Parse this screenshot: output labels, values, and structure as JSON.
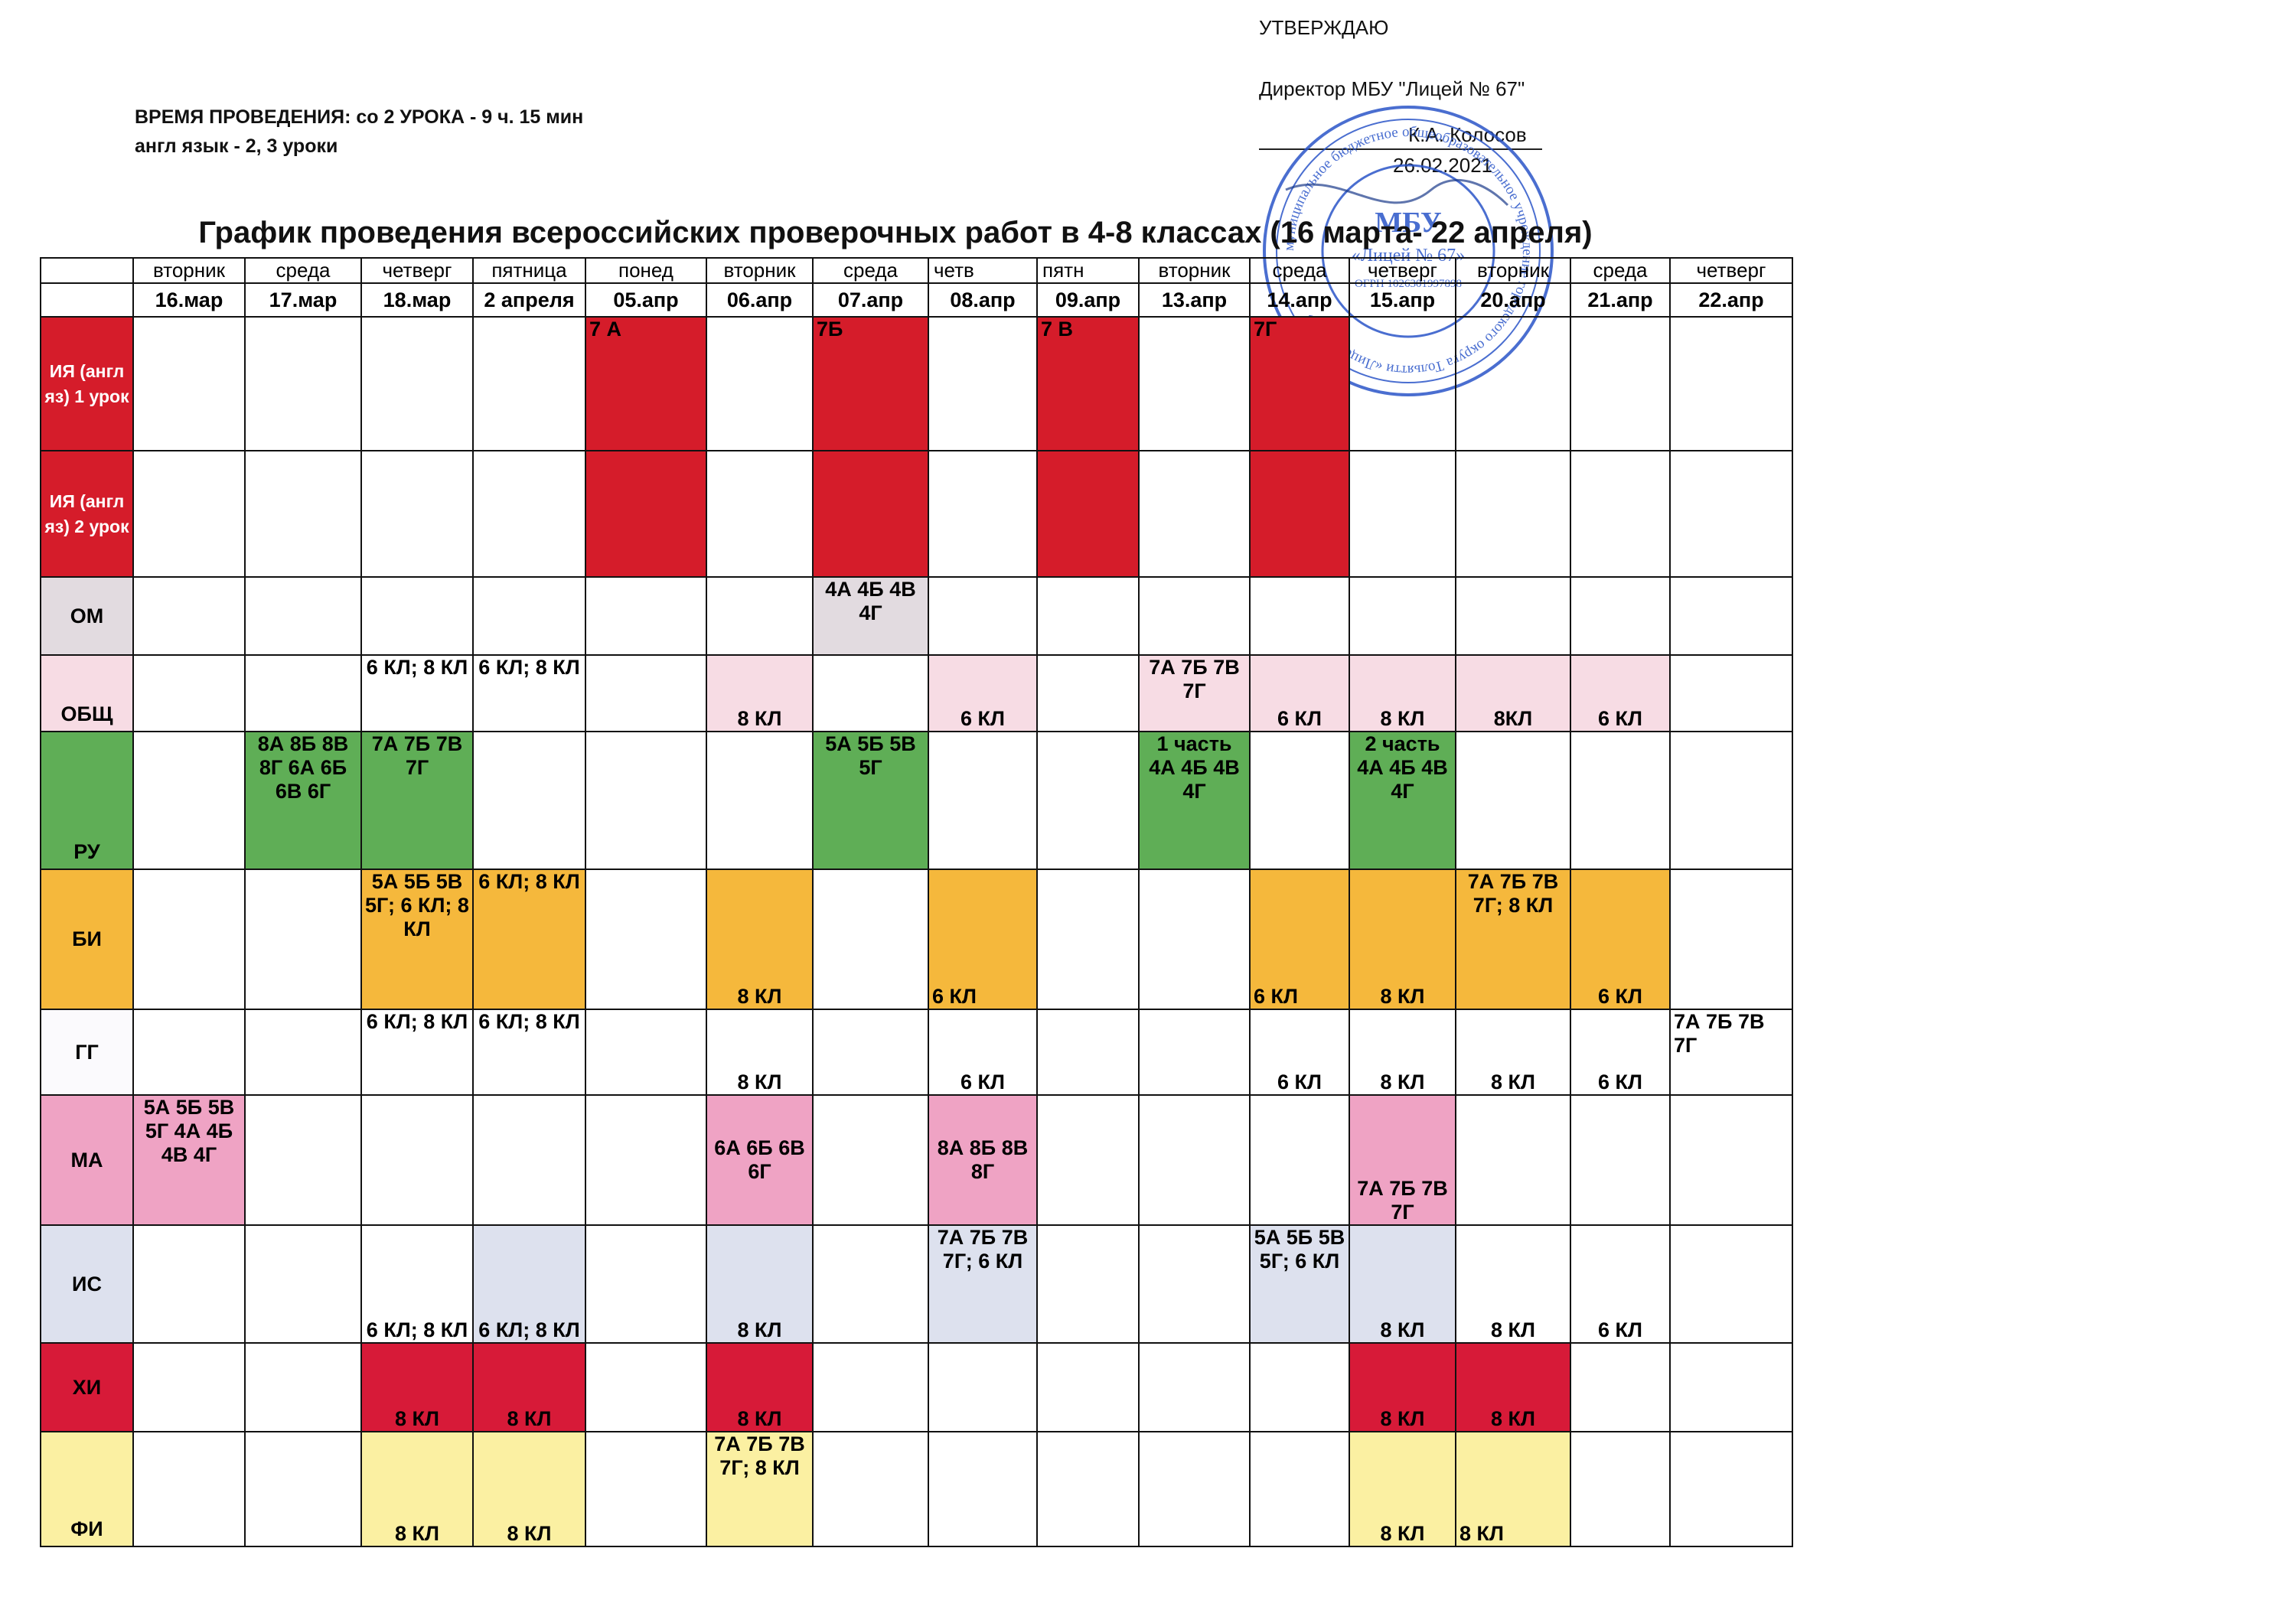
{
  "header": {
    "time_line": "ВРЕМЯ ПРОВЕДЕНИЯ: со  2 УРОКА  - 9 ч. 15 мин",
    "english_line": "англ язык - 2, 3 уроки"
  },
  "approval": {
    "approve_label": "УТВЕРЖДАЮ",
    "director_line": "Директор МБУ \"Лицей № 67\"",
    "director_name": "К.А. Колосов",
    "date": "26.02.2021"
  },
  "stamp": {
    "ring_text": "муниципальное бюджетное общеобразовательное учреждение городского округа Тольятти «Лицей № 67»",
    "center_short": "МБУ",
    "center_name": "«Лицей № 67»",
    "code": "ОГРН 1026301997898"
  },
  "title": "График проведения всероссийских проверочных работ в 4-8 классах (16 марта- 22 апреля)",
  "days": [
    "вторник",
    "среда",
    "четверг",
    "пятница",
    "понед",
    "вторник",
    "среда",
    "четв",
    "пятн",
    "вторник",
    "среда",
    "четверг",
    "вторник",
    "среда",
    "четверг"
  ],
  "dates": [
    "16.мар",
    "17.мар",
    "18.мар",
    "2 апреля",
    "05.апр",
    "06.апр",
    "07.апр",
    "08.апр",
    "09.апр",
    "13.апр",
    "14.апр",
    "15.апр",
    "20.апр",
    "21.апр",
    "22.апр"
  ],
  "rows": {
    "english1": {
      "subject": "ИЯ (англ яз)  1 урок",
      "c4": "7 А",
      "c6": "7Б",
      "c8": "7 В",
      "c10": "7Г"
    },
    "english2": {
      "subject": "ИЯ (англ яз)  2 урок"
    },
    "om": {
      "subject": "ОМ",
      "c6": "4А 4Б 4В 4Г"
    },
    "obsh": {
      "subject": "ОБЩ",
      "c2": "6 КЛ; 8 КЛ",
      "c3": "6 КЛ; 8 КЛ",
      "c5": "8 КЛ",
      "c7": "6 КЛ",
      "c9": "7А 7Б 7В 7Г",
      "c10": "6 КЛ",
      "c11": "8 КЛ",
      "c12": "8КЛ",
      "c13": "6 КЛ"
    },
    "ru": {
      "subject": "РУ",
      "c1": "8А 8Б 8В 8Г  6А 6Б 6В 6Г",
      "c2": "7А 7Б 7В 7Г",
      "c6": "5А 5Б 5В 5Г",
      "c9": "1 часть 4А 4Б 4В 4Г",
      "c11": "2 часть 4А 4Б 4В 4Г"
    },
    "bi": {
      "subject": "БИ",
      "c2": "5А 5Б 5В 5Г;  6 КЛ; 8 КЛ",
      "c3": "6 КЛ; 8 КЛ",
      "c5": "8 КЛ",
      "c7": "6 КЛ",
      "c10": "6 КЛ",
      "c11": "8 КЛ",
      "c12": "7А 7Б 7В 7Г;      8 КЛ",
      "c13": "6 КЛ"
    },
    "gg": {
      "subject": "ГГ",
      "c2": "6 КЛ;    8 КЛ",
      "c3": "6 КЛ;    8 КЛ",
      "c5": "8 КЛ",
      "c7": "6 КЛ",
      "c10": "6 КЛ",
      "c11": "8 КЛ",
      "c12": "8 КЛ",
      "c13": "6 КЛ",
      "c14": "7А 7Б 7В 7Г"
    },
    "ma": {
      "subject": "МА",
      "c0": "5А 5Б 5В 5Г    4А 4Б 4В 4Г",
      "c5": "6А 6Б 6В 6Г",
      "c7": "8А 8Б 8В 8Г",
      "c11": "7А 7Б 7В 7Г"
    },
    "is": {
      "subject": "ИС",
      "c2": "6 КЛ; 8 КЛ",
      "c3": "6 КЛ; 8 КЛ",
      "c5": "8 КЛ",
      "c7": "7А 7Б 7В 7Г; 6 КЛ",
      "c10": "5А 5Б 5В 5Г; 6 КЛ",
      "c11": "8 КЛ",
      "c12": "8 КЛ",
      "c13": "6 КЛ"
    },
    "hi": {
      "subject": "ХИ",
      "c2": "8 КЛ",
      "c3": "8 КЛ",
      "c5": "8 КЛ",
      "c11": "8 КЛ",
      "c12": "8 КЛ"
    },
    "fi": {
      "subject": "ФИ",
      "c2": "8 КЛ",
      "c3": "8 КЛ",
      "c5": "7А 7Б 7В 7Г; 8 КЛ",
      "c11": "8 КЛ",
      "c12": "8 КЛ"
    }
  },
  "colors": {
    "english": "#d51c2a",
    "om": "#e2dbe0",
    "obsh": "#f7dce4",
    "ru": "#5fae56",
    "bi": "#f5b83c",
    "ma": "#efa3c4",
    "is": "#dde1ee",
    "hi": "#d71a38",
    "fi": "#fbf0a2",
    "stamp_ink": "#2a55c8"
  }
}
